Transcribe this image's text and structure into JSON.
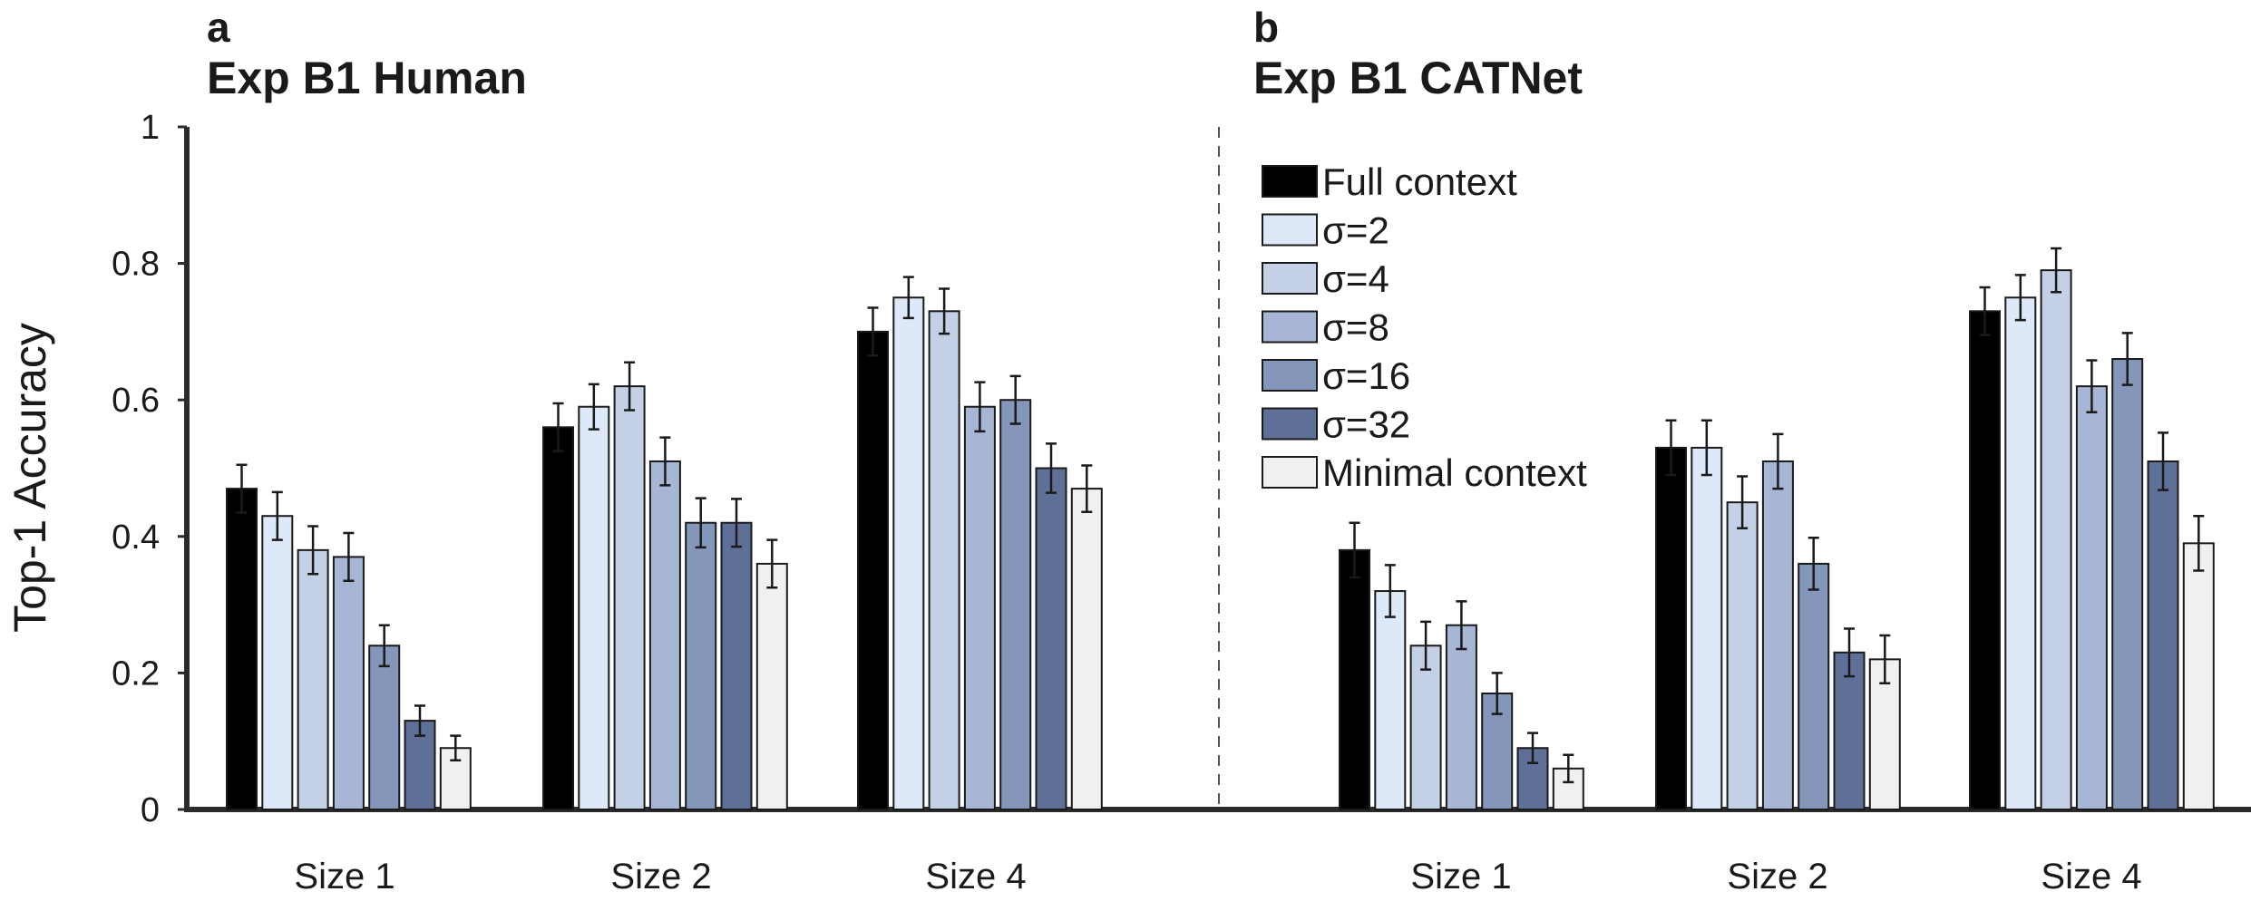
{
  "ylabel": "Top-1 Accuracy",
  "y_ticks": [
    "0",
    "0.2",
    "0.4",
    "0.6",
    "0.8",
    "1"
  ],
  "legend": [
    {
      "label": "Full context",
      "color": "#000000"
    },
    {
      "label": "σ=2",
      "color": "#dde8f8"
    },
    {
      "label": "σ=4",
      "color": "#c3d0e6"
    },
    {
      "label": "σ=8",
      "color": "#a7b6d4"
    },
    {
      "label": "σ=16",
      "color": "#8497ba"
    },
    {
      "label": "σ=32",
      "color": "#5f7098"
    },
    {
      "label": "Minimal context",
      "color": "#f0f0f0"
    }
  ],
  "panels": [
    {
      "letter": "a",
      "title": "Exp B1 Human"
    },
    {
      "letter": "b",
      "title": "Exp B1 CATNet"
    }
  ],
  "chart_data": [
    {
      "type": "bar",
      "title": "Exp B1 Human",
      "ylabel": "Top-1 Accuracy",
      "ylim": [
        0,
        1
      ],
      "categories": [
        "Size 1",
        "Size 2",
        "Size 4"
      ],
      "series": [
        {
          "name": "Full context",
          "values": [
            0.47,
            0.56,
            0.7
          ],
          "errors": [
            0.035,
            0.035,
            0.035
          ]
        },
        {
          "name": "σ=2",
          "values": [
            0.43,
            0.59,
            0.75
          ],
          "errors": [
            0.035,
            0.033,
            0.03
          ]
        },
        {
          "name": "σ=4",
          "values": [
            0.38,
            0.62,
            0.73
          ],
          "errors": [
            0.035,
            0.035,
            0.033
          ]
        },
        {
          "name": "σ=8",
          "values": [
            0.37,
            0.51,
            0.59
          ],
          "errors": [
            0.035,
            0.035,
            0.036
          ]
        },
        {
          "name": "σ=16",
          "values": [
            0.24,
            0.42,
            0.6
          ],
          "errors": [
            0.03,
            0.036,
            0.035
          ]
        },
        {
          "name": "σ=32",
          "values": [
            0.13,
            0.42,
            0.5
          ],
          "errors": [
            0.022,
            0.035,
            0.036
          ]
        },
        {
          "name": "Minimal context",
          "values": [
            0.09,
            0.36,
            0.47
          ],
          "errors": [
            0.018,
            0.035,
            0.034
          ]
        }
      ],
      "grid": false
    },
    {
      "type": "bar",
      "title": "Exp B1 CATNet",
      "ylabel": "Top-1 Accuracy",
      "ylim": [
        0,
        1
      ],
      "categories": [
        "Size 1",
        "Size 2",
        "Size 4"
      ],
      "series": [
        {
          "name": "Full context",
          "values": [
            0.38,
            0.53,
            0.73
          ],
          "errors": [
            0.04,
            0.04,
            0.035
          ]
        },
        {
          "name": "σ=2",
          "values": [
            0.32,
            0.53,
            0.75
          ],
          "errors": [
            0.038,
            0.04,
            0.033
          ]
        },
        {
          "name": "σ=4",
          "values": [
            0.24,
            0.45,
            0.79
          ],
          "errors": [
            0.035,
            0.038,
            0.032
          ]
        },
        {
          "name": "σ=8",
          "values": [
            0.27,
            0.51,
            0.62
          ],
          "errors": [
            0.035,
            0.04,
            0.038
          ]
        },
        {
          "name": "σ=16",
          "values": [
            0.17,
            0.36,
            0.66
          ],
          "errors": [
            0.03,
            0.038,
            0.038
          ]
        },
        {
          "name": "σ=32",
          "values": [
            0.09,
            0.23,
            0.51
          ],
          "errors": [
            0.022,
            0.035,
            0.042
          ]
        },
        {
          "name": "Minimal context",
          "values": [
            0.06,
            0.22,
            0.39
          ],
          "errors": [
            0.02,
            0.035,
            0.04
          ]
        }
      ],
      "grid": false,
      "legend_position": "top-left"
    }
  ]
}
